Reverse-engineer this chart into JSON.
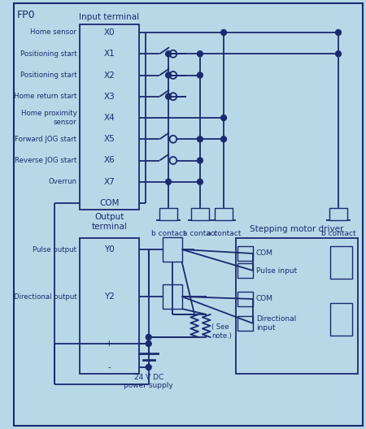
{
  "bg_color": "#b8d8e8",
  "line_color": "#1a2a6e",
  "title": "FP0",
  "input_labels": [
    "X0",
    "X1",
    "X2",
    "X3",
    "X4",
    "X5",
    "X6",
    "X7",
    "COM"
  ],
  "input_left_labels": [
    "Home sensor",
    "Positioning start",
    "Positioning start",
    "Home return start",
    "Home proximity\nsensor",
    "Forward JOG start",
    "Reverse JOG start",
    "Overrun",
    ""
  ],
  "output_labels": [
    "Y0",
    "",
    "Y2",
    "",
    "+",
    "-"
  ],
  "output_left_labels": [
    "Pulse output",
    "",
    "Directional output",
    "",
    "",
    ""
  ],
  "motor_labels": [
    "COM",
    "Pulse input",
    "COM",
    "Directional\ninput"
  ]
}
